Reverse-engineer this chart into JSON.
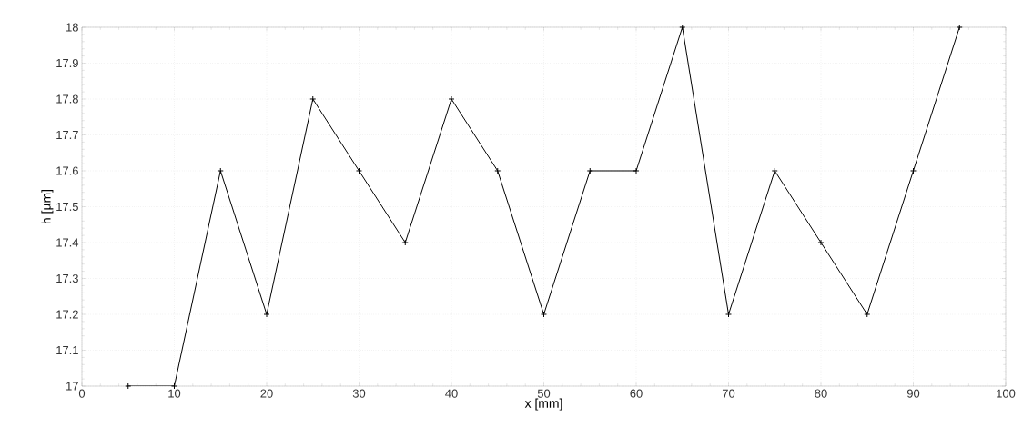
{
  "chart_data": {
    "type": "line",
    "xlabel": "x [mm]",
    "ylabel": "h [µm]",
    "x": [
      5,
      10,
      15,
      20,
      25,
      30,
      35,
      40,
      45,
      50,
      55,
      60,
      65,
      70,
      75,
      80,
      85,
      90,
      95
    ],
    "series": [
      {
        "color": "#000000",
        "values": [
          17,
          17,
          17.6,
          17.2,
          17.8,
          17.6,
          17.4,
          17.8,
          17.6,
          17.2,
          17.6,
          17.6,
          18,
          17.2,
          17.6,
          17.4,
          17.2,
          17.6,
          18
        ]
      }
    ],
    "xlim": [
      0,
      100
    ],
    "ylim": [
      17,
      18
    ],
    "xticks": [
      0,
      10,
      20,
      30,
      40,
      50,
      60,
      70,
      80,
      90,
      100
    ],
    "yticks": [
      17,
      17.1,
      17.2,
      17.3,
      17.4,
      17.5,
      17.6,
      17.7,
      17.8,
      17.9,
      18
    ],
    "grid": true,
    "marker": "cross",
    "line_style": "solid"
  }
}
